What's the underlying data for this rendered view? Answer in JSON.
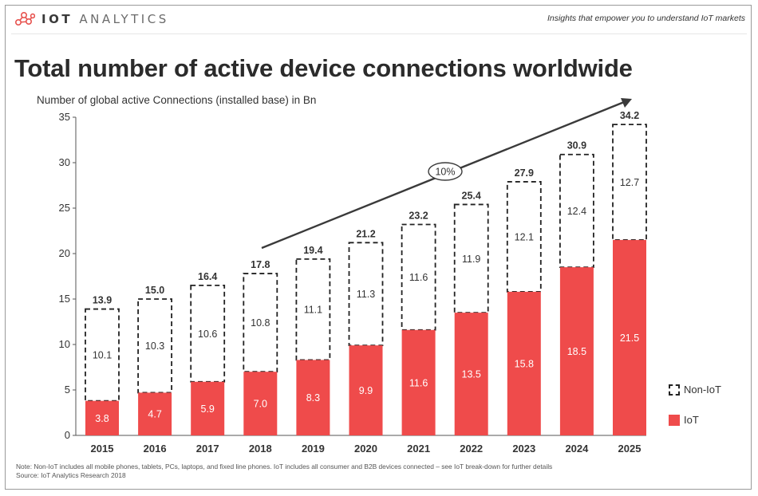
{
  "header": {
    "logo_bold": "IOT",
    "logo_light": "ANALYTICS",
    "tagline": "Insights that empower you to understand IoT markets"
  },
  "colors": {
    "iot": "#ef4b4b",
    "non_iot_border": "#222222",
    "text": "#2b2b2b"
  },
  "chart_data": {
    "type": "bar",
    "stacked": true,
    "title": "Total number of active device connections worldwide",
    "ylabel": "Number of global active Connections (installed base) in Bn",
    "xlabel": "",
    "ylim": [
      0,
      35
    ],
    "yticks": [
      0,
      5,
      10,
      15,
      20,
      25,
      30,
      35
    ],
    "categories": [
      "2015",
      "2016",
      "2017",
      "2018",
      "2019",
      "2020",
      "2021",
      "2022",
      "2023",
      "2024",
      "2025"
    ],
    "series": [
      {
        "name": "IoT",
        "values": [
          3.8,
          4.7,
          5.9,
          7.0,
          8.3,
          9.9,
          11.6,
          13.5,
          15.8,
          18.5,
          21.5
        ]
      },
      {
        "name": "Non-IoT",
        "values": [
          10.1,
          10.3,
          10.6,
          10.8,
          11.1,
          11.3,
          11.6,
          11.9,
          12.1,
          12.4,
          12.7
        ]
      }
    ],
    "totals": [
      "13.9",
      "15.0",
      "16.4",
      "17.8",
      "19.4",
      "21.2",
      "23.2",
      "25.4",
      "27.9",
      "30.9",
      "34.2"
    ],
    "annotation": "10%",
    "legend_position": "right"
  },
  "legend": {
    "non_iot_label": "Non-IoT",
    "iot_label": "IoT"
  },
  "notes": {
    "note": "Note: Non-IoT includes all mobile phones, tablets, PCs, laptops, and fixed line phones. IoT includes all consumer and B2B devices connected – see IoT break-down for further details",
    "source": "Source: IoT Analytics Research 2018"
  }
}
